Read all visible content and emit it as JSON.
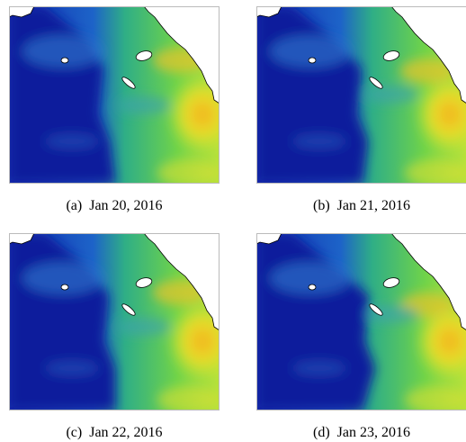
{
  "figure": {
    "panels": [
      {
        "label": "(a)",
        "caption": "Jan 20, 2016"
      },
      {
        "label": "(b)",
        "caption": "Jan 21, 2016"
      },
      {
        "label": "(c)",
        "caption": "Jan 22, 2016"
      },
      {
        "label": "(d)",
        "caption": "Jan 23, 2016"
      }
    ]
  }
}
